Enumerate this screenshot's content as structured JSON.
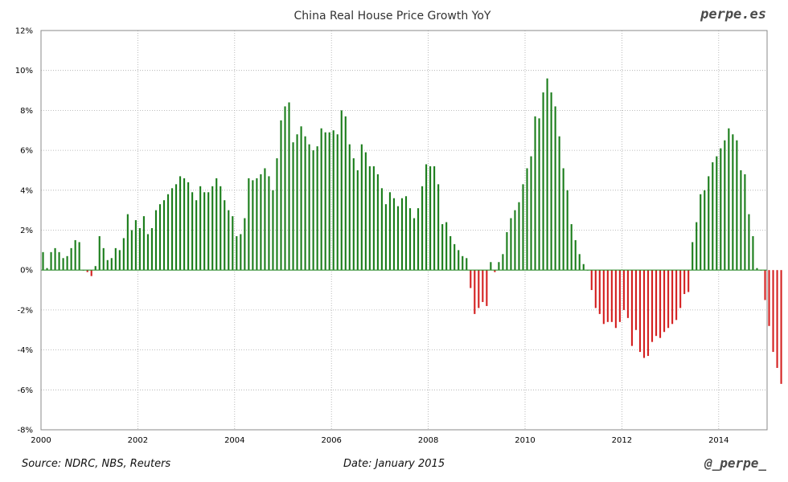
{
  "brand": "perpe.es",
  "handle": "@_perpe_",
  "footer": {
    "source": "Source: NDRC, NBS, Reuters",
    "date": "Date: January 2015"
  },
  "colors": {
    "positive": "#1a7d1a",
    "negative": "#d42020",
    "grid": "#aaaaaa",
    "zero": "#2e8b2e"
  },
  "chart_data": {
    "type": "bar",
    "title": "China Real House Price Growth YoY",
    "xlabel": "",
    "ylabel": "",
    "ylim": [
      -8,
      12
    ],
    "xlim": [
      2000,
      2015
    ],
    "y_ticks": [
      -8,
      -6,
      -4,
      -2,
      0,
      2,
      4,
      6,
      8,
      10,
      12
    ],
    "y_tick_labels": [
      "-8%",
      "-6%",
      "-4%",
      "-2%",
      "0%",
      "2%",
      "4%",
      "6%",
      "8%",
      "10%",
      "12%"
    ],
    "x_ticks": [
      2000,
      2002,
      2004,
      2006,
      2008,
      2010,
      2012,
      2014
    ],
    "x_tick_labels": [
      "2000",
      "2002",
      "2004",
      "2006",
      "2008",
      "2010",
      "2012",
      "2014"
    ],
    "frequency": "monthly",
    "start": "2000-01",
    "series": [
      {
        "name": "China Real House Price Growth YoY",
        "values": [
          0.9,
          0.1,
          0.9,
          1.1,
          0.9,
          0.6,
          0.7,
          1.1,
          1.5,
          1.4,
          0.0,
          -0.1,
          -0.3,
          0.2,
          1.7,
          1.1,
          0.5,
          0.6,
          1.1,
          1.0,
          1.6,
          2.8,
          2.0,
          2.5,
          2.1,
          2.7,
          1.8,
          2.1,
          3.0,
          3.3,
          3.5,
          3.8,
          4.1,
          4.3,
          4.7,
          4.6,
          4.4,
          3.9,
          3.5,
          4.2,
          3.9,
          3.9,
          4.2,
          4.6,
          4.2,
          3.5,
          3.0,
          2.7,
          1.7,
          1.8,
          2.6,
          4.6,
          4.5,
          4.6,
          4.8,
          5.1,
          4.7,
          4.0,
          5.6,
          7.5,
          8.2,
          8.4,
          6.4,
          6.8,
          7.2,
          6.7,
          6.3,
          6.0,
          6.2,
          7.1,
          6.9,
          6.9,
          7.0,
          6.8,
          8.0,
          7.7,
          6.3,
          5.6,
          5.0,
          6.3,
          5.9,
          5.2,
          5.2,
          4.8,
          4.1,
          3.3,
          3.9,
          3.6,
          3.2,
          3.6,
          3.7,
          3.1,
          2.6,
          3.1,
          4.2,
          5.3,
          5.2,
          5.2,
          4.3,
          2.3,
          2.4,
          1.7,
          1.3,
          1.0,
          0.7,
          0.6,
          -0.9,
          -2.2,
          -1.9,
          -1.6,
          -1.8,
          0.4,
          -0.1,
          0.4,
          0.8,
          1.9,
          2.6,
          3.0,
          3.4,
          4.3,
          5.1,
          5.7,
          7.7,
          7.6,
          8.9,
          9.6,
          8.9,
          8.2,
          6.7,
          5.1,
          4.0,
          2.3,
          1.5,
          0.8,
          0.3,
          0.0,
          -1.0,
          -1.9,
          -2.2,
          -2.7,
          -2.6,
          -2.6,
          -2.9,
          -2.6,
          -2.0,
          -2.4,
          -3.8,
          -3.0,
          -4.1,
          -4.4,
          -4.3,
          -3.6,
          -3.3,
          -3.4,
          -3.1,
          -2.9,
          -2.7,
          -2.5,
          -1.9,
          -1.2,
          -1.1,
          1.4,
          2.4,
          3.8,
          4.0,
          4.7,
          5.4,
          5.7,
          6.1,
          6.5,
          7.1,
          6.8,
          6.5,
          5.0,
          4.8,
          2.8,
          1.7,
          0.1,
          0.0,
          -1.5,
          -2.8,
          -4.1,
          -4.9,
          -5.7
        ]
      }
    ]
  }
}
